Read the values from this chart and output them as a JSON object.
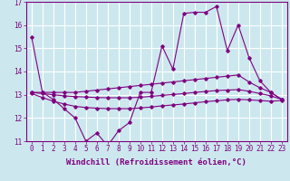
{
  "xlabel": "Windchill (Refroidissement éolien,°C)",
  "background_color": "#cce8ee",
  "line_color": "#800080",
  "grid_color": "#ffffff",
  "x": [
    0,
    1,
    2,
    3,
    4,
    5,
    6,
    7,
    8,
    9,
    10,
    11,
    12,
    13,
    14,
    15,
    16,
    17,
    18,
    19,
    20,
    21,
    22,
    23
  ],
  "line1": [
    15.5,
    13.1,
    12.8,
    12.4,
    12.0,
    11.0,
    11.35,
    10.8,
    11.45,
    11.8,
    13.1,
    13.1,
    15.1,
    14.1,
    16.5,
    16.55,
    16.55,
    16.8,
    14.9,
    16.0,
    14.6,
    13.6,
    13.1,
    12.8
  ],
  "line2": [
    13.1,
    13.1,
    13.1,
    13.1,
    13.1,
    13.15,
    13.2,
    13.25,
    13.3,
    13.35,
    13.4,
    13.45,
    13.5,
    13.55,
    13.6,
    13.65,
    13.7,
    13.75,
    13.8,
    13.85,
    13.55,
    13.3,
    13.1,
    12.8
  ],
  "line3": [
    13.1,
    13.05,
    13.0,
    12.95,
    12.92,
    12.9,
    12.88,
    12.87,
    12.87,
    12.87,
    12.89,
    12.93,
    12.97,
    13.01,
    13.05,
    13.1,
    13.14,
    13.18,
    13.2,
    13.22,
    13.15,
    13.05,
    12.95,
    12.8
  ],
  "line4": [
    13.05,
    12.88,
    12.72,
    12.6,
    12.5,
    12.45,
    12.42,
    12.4,
    12.4,
    12.4,
    12.43,
    12.47,
    12.52,
    12.56,
    12.6,
    12.65,
    12.7,
    12.74,
    12.78,
    12.8,
    12.78,
    12.75,
    12.72,
    12.75
  ],
  "ylim": [
    11.0,
    17.0
  ],
  "yticks": [
    11,
    12,
    13,
    14,
    15,
    16,
    17
  ],
  "xticks": [
    0,
    1,
    2,
    3,
    4,
    5,
    6,
    7,
    8,
    9,
    10,
    11,
    12,
    13,
    14,
    15,
    16,
    17,
    18,
    19,
    20,
    21,
    22,
    23
  ],
  "tick_fontsize": 5.5,
  "label_fontsize": 6.5
}
